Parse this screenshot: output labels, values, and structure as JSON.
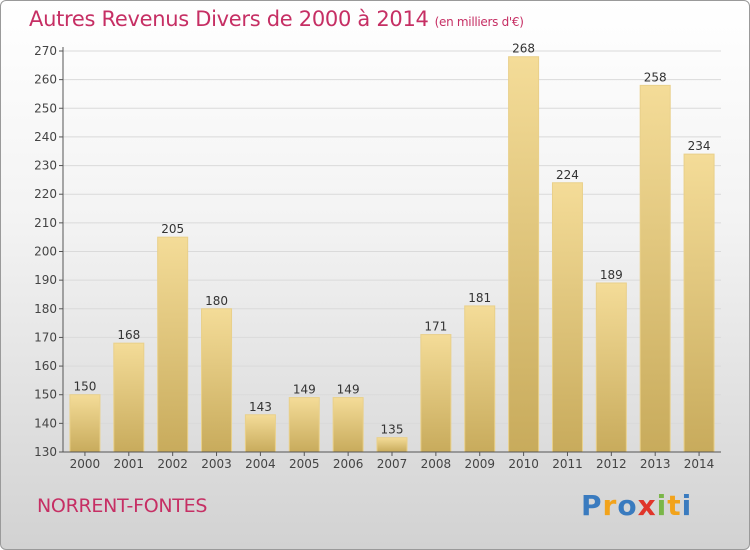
{
  "header": {
    "title": "Autres Revenus Divers de 2000 à 2014",
    "unit": "(en milliers d'€)"
  },
  "footer": {
    "place": "NORRENT-FONTES",
    "logo": [
      "P",
      "r",
      "o",
      "x",
      "i",
      "t",
      "i"
    ],
    "logo_colors": [
      "#3a7bbf",
      "#f2a31b",
      "#3a7bbf",
      "#e0352a",
      "#7ab648",
      "#f2a31b",
      "#3a7bbf"
    ]
  },
  "colors": {
    "bar_light": "#f4dc98",
    "bar_dark": "#c8ab5c",
    "axis": "#555555",
    "grid": "#dadada"
  },
  "chart_data": {
    "type": "bar",
    "title": "Autres Revenus Divers de 2000 à 2014",
    "subtitle": "(en milliers d'€)",
    "xlabel": "",
    "ylabel": "",
    "categories": [
      "2000",
      "2001",
      "2002",
      "2003",
      "2004",
      "2005",
      "2006",
      "2007",
      "2008",
      "2009",
      "2010",
      "2011",
      "2012",
      "2013",
      "2014"
    ],
    "values": [
      150,
      168,
      205,
      180,
      143,
      149,
      149,
      135,
      171,
      181,
      268,
      224,
      189,
      258,
      234
    ],
    "ylim": [
      130,
      270
    ],
    "yticks": [
      "130",
      "140",
      "150",
      "160",
      "170",
      "180",
      "190",
      "200",
      "210",
      "220",
      "230",
      "240",
      "250",
      "260",
      "270"
    ],
    "grid": true,
    "legend": "none"
  }
}
